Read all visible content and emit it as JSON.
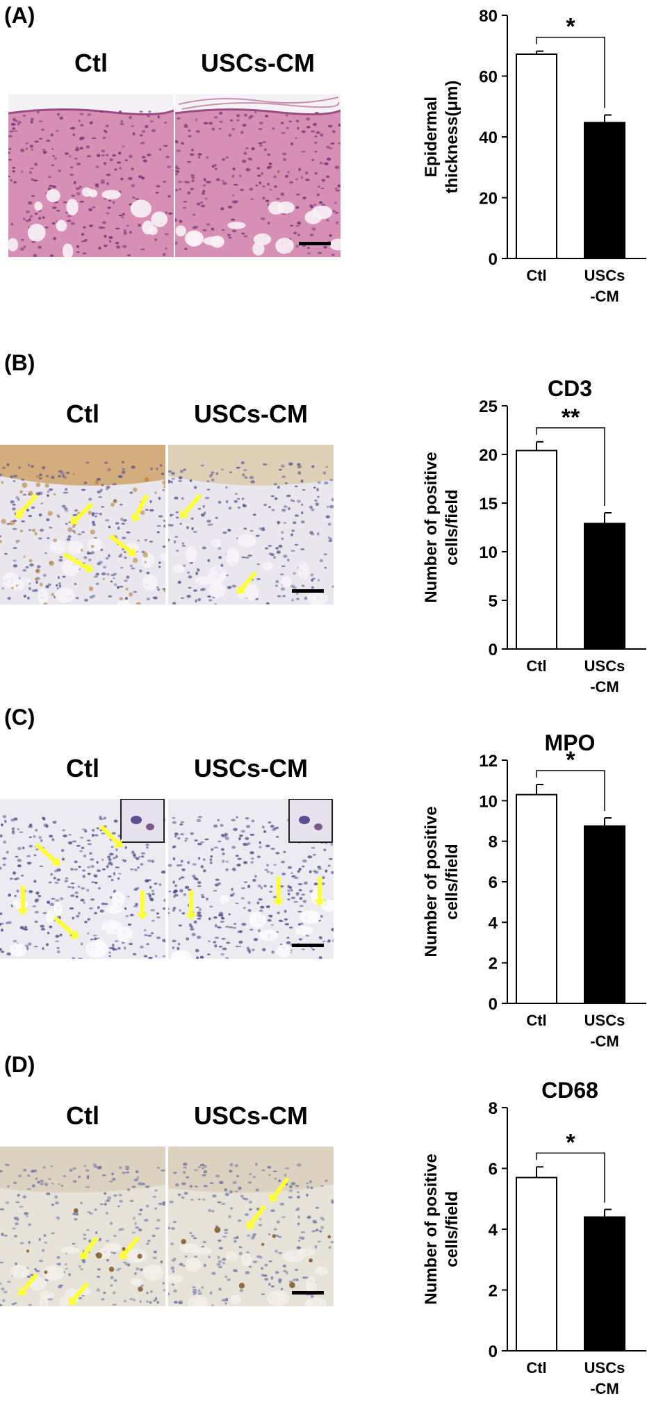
{
  "figure": {
    "panels": [
      {
        "label": "(A)",
        "left_title": "Ctl",
        "right_title": "USCs-CM",
        "stain": "he",
        "chart_title": "",
        "ylabel_lines": [
          "Epidermal",
          "thickness(μm)"
        ],
        "significance": "*"
      },
      {
        "label": "(B)",
        "left_title": "Ctl",
        "right_title": "USCs-CM",
        "stain": "cd3",
        "chart_title": "CD3",
        "ylabel_lines": [
          "Number of positive",
          "cells/field"
        ],
        "significance": "**"
      },
      {
        "label": "(C)",
        "left_title": "Ctl",
        "right_title": "USCs-CM",
        "stain": "mpo",
        "chart_title": "MPO",
        "ylabel_lines": [
          "Number of positive",
          "cells/field"
        ],
        "significance": "*"
      },
      {
        "label": "(D)",
        "left_title": "Ctl",
        "right_title": "USCs-CM",
        "stain": "cd68",
        "chart_title": "CD68",
        "ylabel_lines": [
          "Number of positive",
          "cells/field"
        ],
        "significance": "*"
      }
    ]
  },
  "chart_data": [
    {
      "type": "bar",
      "title": "",
      "ylabel": "Epidermal thickness(μm)",
      "categories": [
        "Ctl",
        "USCs-CM"
      ],
      "category_lines": [
        [
          "Ctl"
        ],
        [
          "USCs",
          "-CM"
        ]
      ],
      "values": [
        67.2,
        44.7
      ],
      "errors": [
        1.0,
        2.5
      ],
      "bar_colors": [
        "#ffffff",
        "#000000"
      ],
      "ylim": [
        0,
        80
      ],
      "yticks": [
        0,
        20,
        40,
        60,
        80
      ],
      "grid": false,
      "significance": "*"
    },
    {
      "type": "bar",
      "title": "CD3",
      "ylabel": "Number of positive cells/field",
      "categories": [
        "Ctl",
        "USCs-CM"
      ],
      "category_lines": [
        [
          "Ctl"
        ],
        [
          "USCs",
          "-CM"
        ]
      ],
      "values": [
        20.4,
        12.9
      ],
      "errors": [
        0.9,
        1.1
      ],
      "bar_colors": [
        "#ffffff",
        "#000000"
      ],
      "ylim": [
        0,
        25
      ],
      "yticks": [
        0,
        5,
        10,
        15,
        20,
        25
      ],
      "grid": false,
      "significance": "**"
    },
    {
      "type": "bar",
      "title": "MPO",
      "ylabel": "Number of positive cells/field",
      "categories": [
        "Ctl",
        "USCs-CM"
      ],
      "category_lines": [
        [
          "Ctl"
        ],
        [
          "USCs",
          "-CM"
        ]
      ],
      "values": [
        10.3,
        8.75
      ],
      "errors": [
        0.5,
        0.4
      ],
      "bar_colors": [
        "#ffffff",
        "#000000"
      ],
      "ylim": [
        0,
        12
      ],
      "yticks": [
        0,
        2,
        4,
        6,
        8,
        10,
        12
      ],
      "grid": false,
      "significance": "*"
    },
    {
      "type": "bar",
      "title": "CD68",
      "ylabel": "Number of positive cells/field",
      "categories": [
        "Ctl",
        "USCs-CM"
      ],
      "category_lines": [
        [
          "Ctl"
        ],
        [
          "USCs",
          "-CM"
        ]
      ],
      "values": [
        5.7,
        4.4
      ],
      "errors": [
        0.35,
        0.25
      ],
      "bar_colors": [
        "#ffffff",
        "#000000"
      ],
      "ylim": [
        0,
        8
      ],
      "yticks": [
        0,
        2,
        4,
        6,
        8
      ],
      "grid": false,
      "significance": "*"
    }
  ]
}
